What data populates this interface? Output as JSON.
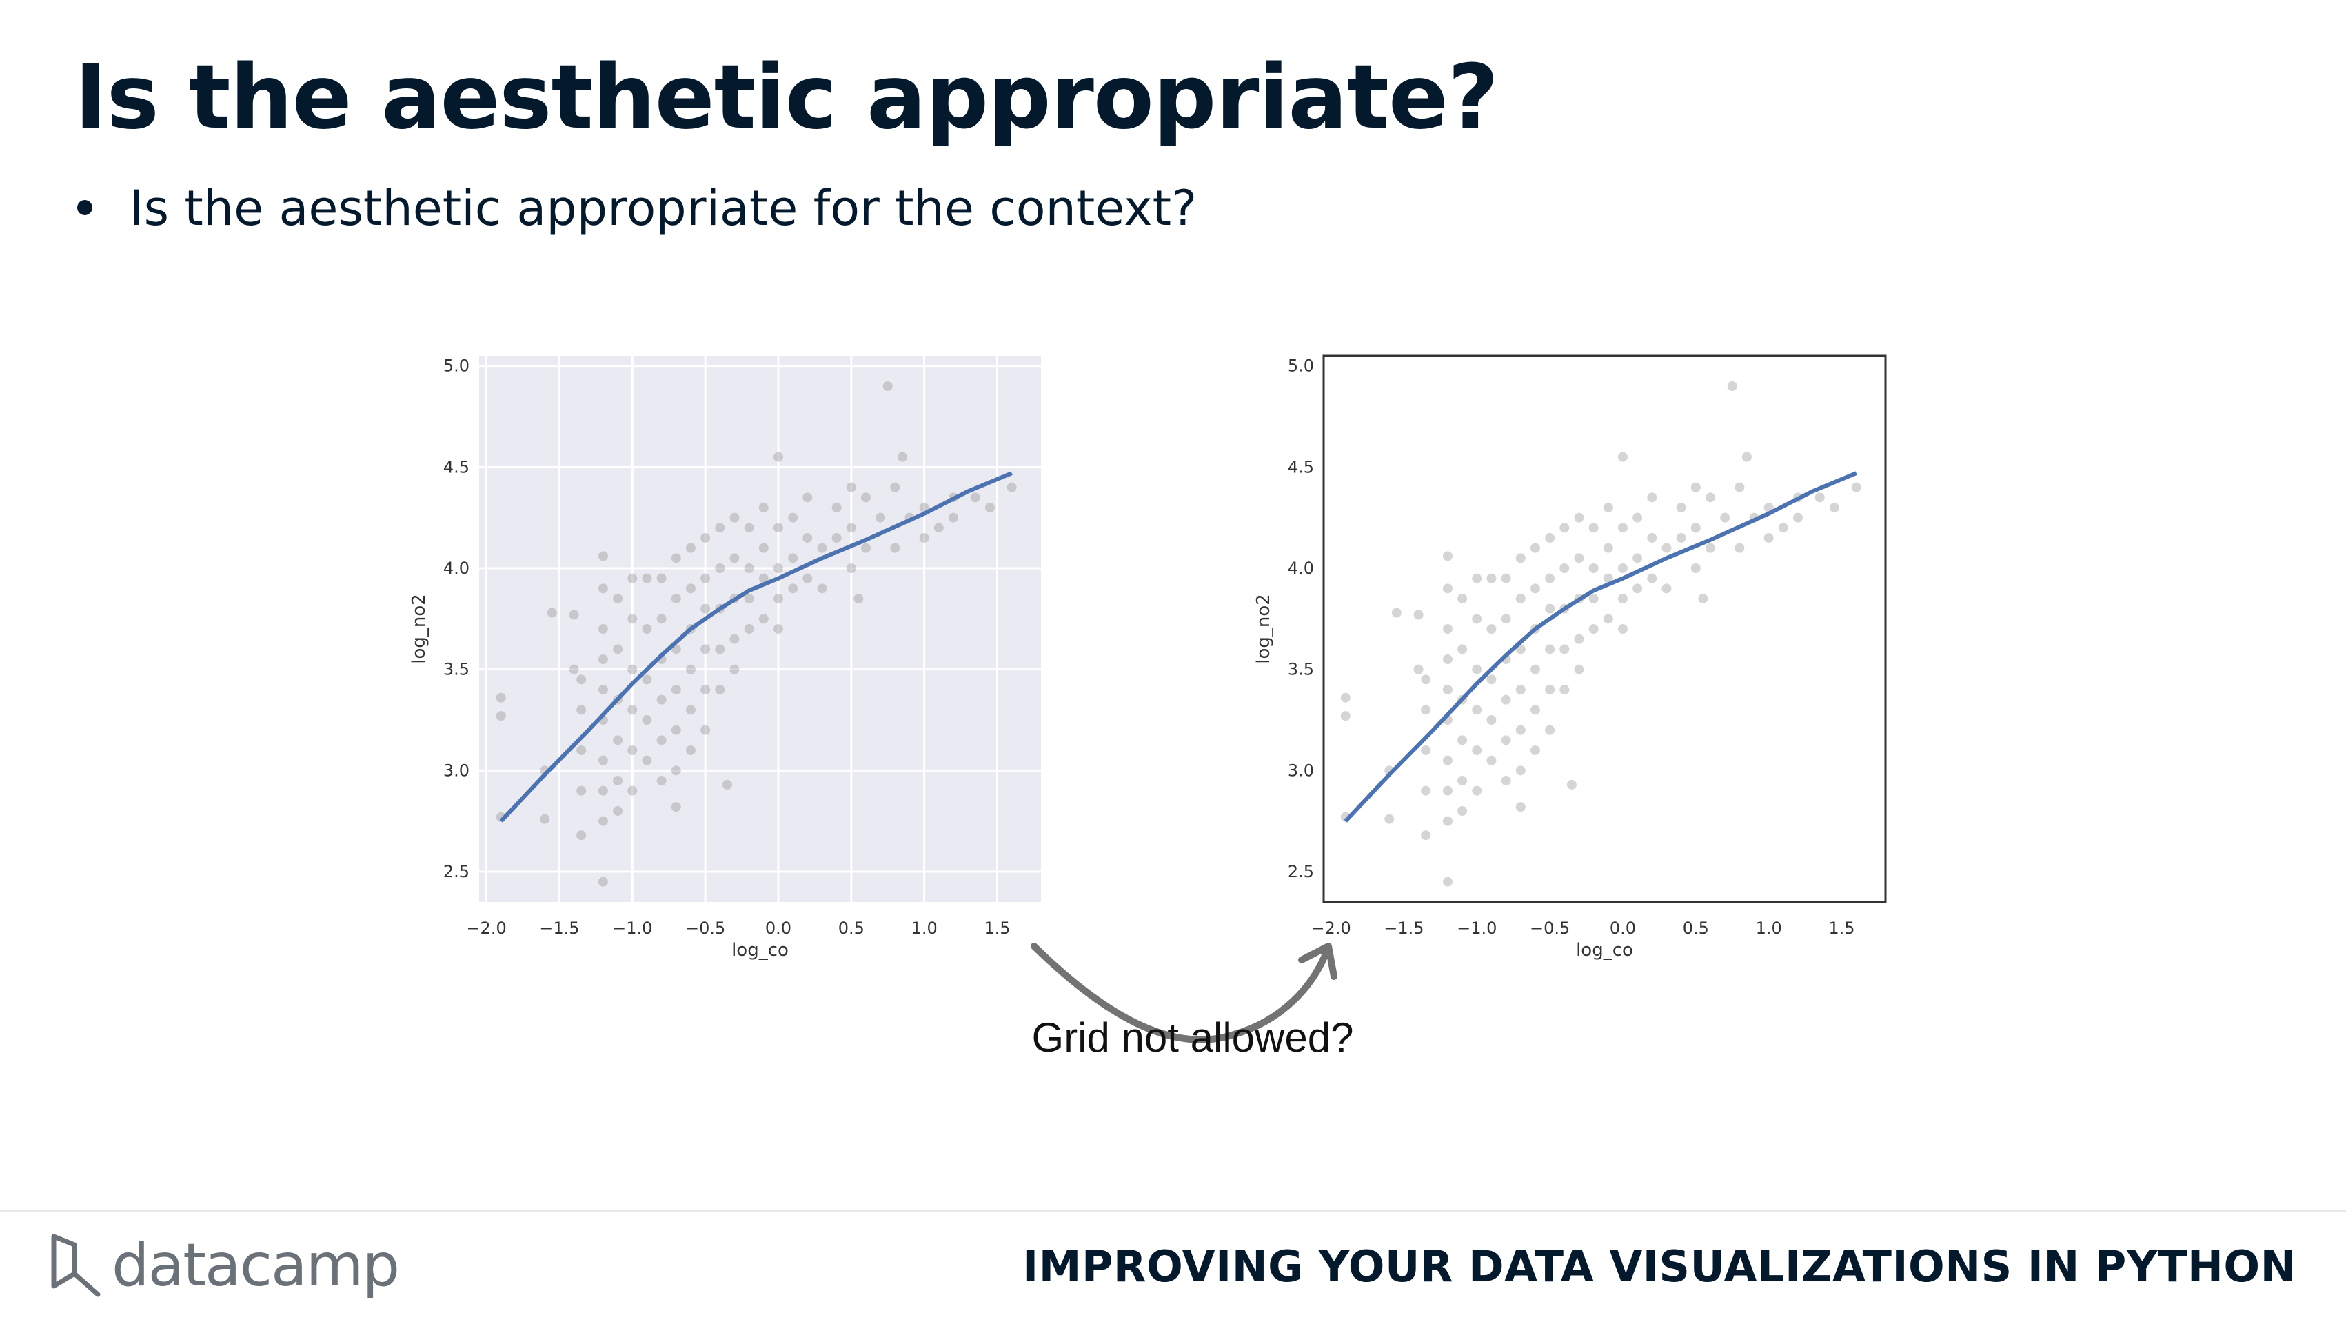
{
  "slide": {
    "title": "Is the aesthetic appropriate?",
    "bullets": [
      "Is the aesthetic appropriate for the context?"
    ],
    "annotation": "Grid not allowed?",
    "logo_text": "datacamp",
    "course_title": "IMPROVING YOUR DATA VISUALIZATIONS IN PYTHON"
  },
  "chart_data": [
    {
      "type": "scatter",
      "style": "seaborn darkgrid",
      "xlabel": "log_co",
      "ylabel": "log_no2",
      "xlim": [
        -2.05,
        1.8
      ],
      "ylim": [
        2.35,
        5.05
      ],
      "x_ticks": [
        -2.0,
        -1.5,
        -1.0,
        -0.5,
        0.0,
        0.5,
        1.0,
        1.5
      ],
      "x_tick_labels": [
        "−2.0",
        "−1.5",
        "−1.0",
        "−0.5",
        "0.0",
        "0.5",
        "1.0",
        "1.5"
      ],
      "y_ticks": [
        2.5,
        3.0,
        3.5,
        4.0,
        4.5,
        5.0
      ],
      "y_tick_labels": [
        "2.5",
        "3.0",
        "3.5",
        "4.0",
        "4.5",
        "5.0"
      ],
      "grid": true,
      "background": "#eaeaf2",
      "point_color": "#888888",
      "line_color": "#4c72b0",
      "points": [
        [
          -1.9,
          3.36
        ],
        [
          -1.9,
          3.27
        ],
        [
          -1.9,
          2.77
        ],
        [
          -1.6,
          2.76
        ],
        [
          -1.6,
          3.0
        ],
        [
          -1.55,
          3.78
        ],
        [
          -1.4,
          3.77
        ],
        [
          -1.4,
          3.5
        ],
        [
          -1.35,
          3.45
        ],
        [
          -1.35,
          3.3
        ],
        [
          -1.35,
          3.1
        ],
        [
          -1.35,
          2.9
        ],
        [
          -1.35,
          2.68
        ],
        [
          -1.2,
          4.06
        ],
        [
          -1.2,
          3.9
        ],
        [
          -1.2,
          3.7
        ],
        [
          -1.2,
          3.55
        ],
        [
          -1.2,
          3.4
        ],
        [
          -1.2,
          3.25
        ],
        [
          -1.2,
          3.05
        ],
        [
          -1.2,
          2.9
        ],
        [
          -1.2,
          2.75
        ],
        [
          -1.2,
          2.45
        ],
        [
          -1.1,
          3.85
        ],
        [
          -1.1,
          3.6
        ],
        [
          -1.1,
          3.35
        ],
        [
          -1.1,
          3.15
        ],
        [
          -1.1,
          2.95
        ],
        [
          -1.1,
          2.8
        ],
        [
          -1.0,
          3.95
        ],
        [
          -1.0,
          3.75
        ],
        [
          -1.0,
          3.5
        ],
        [
          -1.0,
          3.3
        ],
        [
          -1.0,
          3.1
        ],
        [
          -1.0,
          2.9
        ],
        [
          -0.9,
          3.95
        ],
        [
          -0.9,
          3.7
        ],
        [
          -0.9,
          3.45
        ],
        [
          -0.9,
          3.25
        ],
        [
          -0.9,
          3.05
        ],
        [
          -0.8,
          3.95
        ],
        [
          -0.8,
          3.75
        ],
        [
          -0.8,
          3.55
        ],
        [
          -0.8,
          3.35
        ],
        [
          -0.8,
          3.15
        ],
        [
          -0.8,
          2.95
        ],
        [
          -0.7,
          4.05
        ],
        [
          -0.7,
          3.85
        ],
        [
          -0.7,
          3.6
        ],
        [
          -0.7,
          3.4
        ],
        [
          -0.7,
          3.2
        ],
        [
          -0.7,
          3.0
        ],
        [
          -0.7,
          2.82
        ],
        [
          -0.6,
          4.1
        ],
        [
          -0.6,
          3.9
        ],
        [
          -0.6,
          3.7
        ],
        [
          -0.6,
          3.5
        ],
        [
          -0.6,
          3.3
        ],
        [
          -0.6,
          3.1
        ],
        [
          -0.5,
          4.15
        ],
        [
          -0.5,
          3.95
        ],
        [
          -0.5,
          3.8
        ],
        [
          -0.5,
          3.6
        ],
        [
          -0.5,
          3.4
        ],
        [
          -0.5,
          3.2
        ],
        [
          -0.4,
          4.2
        ],
        [
          -0.4,
          4.0
        ],
        [
          -0.4,
          3.8
        ],
        [
          -0.4,
          3.6
        ],
        [
          -0.4,
          3.4
        ],
        [
          -0.35,
          2.93
        ],
        [
          -0.3,
          4.25
        ],
        [
          -0.3,
          4.05
        ],
        [
          -0.3,
          3.85
        ],
        [
          -0.3,
          3.65
        ],
        [
          -0.3,
          3.5
        ],
        [
          -0.2,
          4.2
        ],
        [
          -0.2,
          4.0
        ],
        [
          -0.2,
          3.85
        ],
        [
          -0.2,
          3.7
        ],
        [
          -0.1,
          4.3
        ],
        [
          -0.1,
          4.1
        ],
        [
          -0.1,
          3.95
        ],
        [
          -0.1,
          3.75
        ],
        [
          0.0,
          4.55
        ],
        [
          0.0,
          4.2
        ],
        [
          0.0,
          4.0
        ],
        [
          0.0,
          3.85
        ],
        [
          0.0,
          3.7
        ],
        [
          0.1,
          4.25
        ],
        [
          0.1,
          4.05
        ],
        [
          0.1,
          3.9
        ],
        [
          0.2,
          4.35
        ],
        [
          0.2,
          4.15
        ],
        [
          0.2,
          3.95
        ],
        [
          0.3,
          4.1
        ],
        [
          0.3,
          3.9
        ],
        [
          0.4,
          4.3
        ],
        [
          0.4,
          4.15
        ],
        [
          0.5,
          4.4
        ],
        [
          0.5,
          4.2
        ],
        [
          0.5,
          4.0
        ],
        [
          0.55,
          3.85
        ],
        [
          0.6,
          4.35
        ],
        [
          0.6,
          4.1
        ],
        [
          0.7,
          4.25
        ],
        [
          0.75,
          4.9
        ],
        [
          0.8,
          4.4
        ],
        [
          0.8,
          4.1
        ],
        [
          0.85,
          4.55
        ],
        [
          0.9,
          4.25
        ],
        [
          1.0,
          4.3
        ],
        [
          1.0,
          4.15
        ],
        [
          1.1,
          4.2
        ],
        [
          1.2,
          4.35
        ],
        [
          1.2,
          4.25
        ],
        [
          1.35,
          4.35
        ],
        [
          1.45,
          4.3
        ],
        [
          1.6,
          4.4
        ]
      ],
      "line_x": [
        -1.9,
        -1.6,
        -1.3,
        -1.0,
        -0.8,
        -0.6,
        -0.4,
        -0.2,
        0.0,
        0.3,
        0.6,
        1.0,
        1.3,
        1.6
      ],
      "line_y": [
        2.75,
        2.98,
        3.2,
        3.43,
        3.57,
        3.7,
        3.8,
        3.89,
        3.95,
        4.05,
        4.14,
        4.27,
        4.38,
        4.47
      ]
    },
    {
      "type": "scatter",
      "style": "seaborn white",
      "xlabel": "log_co",
      "ylabel": "log_no2",
      "xlim": [
        -2.05,
        1.8
      ],
      "ylim": [
        2.35,
        5.05
      ],
      "x_ticks": [
        -2.0,
        -1.5,
        -1.0,
        -0.5,
        0.0,
        0.5,
        1.0,
        1.5
      ],
      "x_tick_labels": [
        "−2.0",
        "−1.5",
        "−1.0",
        "−0.5",
        "0.0",
        "0.5",
        "1.0",
        "1.5"
      ],
      "y_ticks": [
        2.5,
        3.0,
        3.5,
        4.0,
        4.5,
        5.0
      ],
      "y_tick_labels": [
        "2.5",
        "3.0",
        "3.5",
        "4.0",
        "4.5",
        "5.0"
      ],
      "grid": false,
      "background": "#ffffff",
      "point_color": "#888888",
      "line_color": "#4c72b0",
      "points": [
        [
          -1.9,
          3.36
        ],
        [
          -1.9,
          3.27
        ],
        [
          -1.9,
          2.77
        ],
        [
          -1.6,
          2.76
        ],
        [
          -1.6,
          3.0
        ],
        [
          -1.55,
          3.78
        ],
        [
          -1.4,
          3.77
        ],
        [
          -1.4,
          3.5
        ],
        [
          -1.35,
          3.45
        ],
        [
          -1.35,
          3.3
        ],
        [
          -1.35,
          3.1
        ],
        [
          -1.35,
          2.9
        ],
        [
          -1.35,
          2.68
        ],
        [
          -1.2,
          4.06
        ],
        [
          -1.2,
          3.9
        ],
        [
          -1.2,
          3.7
        ],
        [
          -1.2,
          3.55
        ],
        [
          -1.2,
          3.4
        ],
        [
          -1.2,
          3.25
        ],
        [
          -1.2,
          3.05
        ],
        [
          -1.2,
          2.9
        ],
        [
          -1.2,
          2.75
        ],
        [
          -1.2,
          2.45
        ],
        [
          -1.1,
          3.85
        ],
        [
          -1.1,
          3.6
        ],
        [
          -1.1,
          3.35
        ],
        [
          -1.1,
          3.15
        ],
        [
          -1.1,
          2.95
        ],
        [
          -1.1,
          2.8
        ],
        [
          -1.0,
          3.95
        ],
        [
          -1.0,
          3.75
        ],
        [
          -1.0,
          3.5
        ],
        [
          -1.0,
          3.3
        ],
        [
          -1.0,
          3.1
        ],
        [
          -1.0,
          2.9
        ],
        [
          -0.9,
          3.95
        ],
        [
          -0.9,
          3.7
        ],
        [
          -0.9,
          3.45
        ],
        [
          -0.9,
          3.25
        ],
        [
          -0.9,
          3.05
        ],
        [
          -0.8,
          3.95
        ],
        [
          -0.8,
          3.75
        ],
        [
          -0.8,
          3.55
        ],
        [
          -0.8,
          3.35
        ],
        [
          -0.8,
          3.15
        ],
        [
          -0.8,
          2.95
        ],
        [
          -0.7,
          4.05
        ],
        [
          -0.7,
          3.85
        ],
        [
          -0.7,
          3.6
        ],
        [
          -0.7,
          3.4
        ],
        [
          -0.7,
          3.2
        ],
        [
          -0.7,
          3.0
        ],
        [
          -0.7,
          2.82
        ],
        [
          -0.6,
          4.1
        ],
        [
          -0.6,
          3.9
        ],
        [
          -0.6,
          3.7
        ],
        [
          -0.6,
          3.5
        ],
        [
          -0.6,
          3.3
        ],
        [
          -0.6,
          3.1
        ],
        [
          -0.5,
          4.15
        ],
        [
          -0.5,
          3.95
        ],
        [
          -0.5,
          3.8
        ],
        [
          -0.5,
          3.6
        ],
        [
          -0.5,
          3.4
        ],
        [
          -0.5,
          3.2
        ],
        [
          -0.4,
          4.2
        ],
        [
          -0.4,
          4.0
        ],
        [
          -0.4,
          3.8
        ],
        [
          -0.4,
          3.6
        ],
        [
          -0.4,
          3.4
        ],
        [
          -0.35,
          2.93
        ],
        [
          -0.3,
          4.25
        ],
        [
          -0.3,
          4.05
        ],
        [
          -0.3,
          3.85
        ],
        [
          -0.3,
          3.65
        ],
        [
          -0.3,
          3.5
        ],
        [
          -0.2,
          4.2
        ],
        [
          -0.2,
          4.0
        ],
        [
          -0.2,
          3.85
        ],
        [
          -0.2,
          3.7
        ],
        [
          -0.1,
          4.3
        ],
        [
          -0.1,
          4.1
        ],
        [
          -0.1,
          3.95
        ],
        [
          -0.1,
          3.75
        ],
        [
          0.0,
          4.55
        ],
        [
          0.0,
          4.2
        ],
        [
          0.0,
          4.0
        ],
        [
          0.0,
          3.85
        ],
        [
          0.0,
          3.7
        ],
        [
          0.1,
          4.25
        ],
        [
          0.1,
          4.05
        ],
        [
          0.1,
          3.9
        ],
        [
          0.2,
          4.35
        ],
        [
          0.2,
          4.15
        ],
        [
          0.2,
          3.95
        ],
        [
          0.3,
          4.1
        ],
        [
          0.3,
          3.9
        ],
        [
          0.4,
          4.3
        ],
        [
          0.4,
          4.15
        ],
        [
          0.5,
          4.4
        ],
        [
          0.5,
          4.2
        ],
        [
          0.5,
          4.0
        ],
        [
          0.55,
          3.85
        ],
        [
          0.6,
          4.35
        ],
        [
          0.6,
          4.1
        ],
        [
          0.7,
          4.25
        ],
        [
          0.75,
          4.9
        ],
        [
          0.8,
          4.4
        ],
        [
          0.8,
          4.1
        ],
        [
          0.85,
          4.55
        ],
        [
          0.9,
          4.25
        ],
        [
          1.0,
          4.3
        ],
        [
          1.0,
          4.15
        ],
        [
          1.1,
          4.2
        ],
        [
          1.2,
          4.35
        ],
        [
          1.2,
          4.25
        ],
        [
          1.35,
          4.35
        ],
        [
          1.45,
          4.3
        ],
        [
          1.6,
          4.4
        ]
      ],
      "line_x": [
        -1.9,
        -1.6,
        -1.3,
        -1.0,
        -0.8,
        -0.6,
        -0.4,
        -0.2,
        0.0,
        0.3,
        0.6,
        1.0,
        1.3,
        1.6
      ],
      "line_y": [
        2.75,
        2.98,
        3.2,
        3.43,
        3.57,
        3.7,
        3.8,
        3.89,
        3.95,
        4.05,
        4.14,
        4.27,
        4.38,
        4.47
      ]
    }
  ]
}
